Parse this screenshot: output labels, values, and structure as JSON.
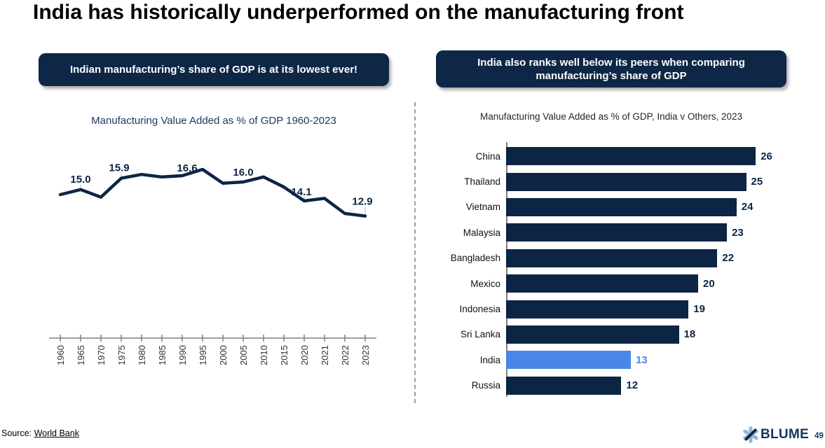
{
  "slide": {
    "title": "India has historically underperformed on the manufacturing front",
    "source_prefix": "Source:",
    "source_link": "World Bank",
    "brand": "BLUME",
    "page_number": "49"
  },
  "left_panel": {
    "banner": "Indian manufacturing’s share of GDP is at its lowest ever!"
  },
  "right_panel": {
    "banner": "India also ranks well below its peers when comparing manufacturing’s share of GDP"
  },
  "colors": {
    "navy": "#0c2544",
    "banner_navy": "#0e2747",
    "india_blue": "#4a86e8",
    "axis_gray": "#808080",
    "tick_label": "#333333",
    "leader_gray": "#a6b0bf",
    "title_navy": "#1f3864",
    "logo_light_blue": "#8fb8d8"
  },
  "chart_data": [
    {
      "type": "line",
      "title": "Manufacturing Value Added as % of GDP 1960-2023",
      "x": [
        "1960",
        "1965",
        "1970",
        "1975",
        "1980",
        "1985",
        "1990",
        "1995",
        "2000",
        "2005",
        "2010",
        "2015",
        "2020",
        "2021",
        "2022",
        "2023"
      ],
      "values": [
        14.6,
        15.0,
        14.4,
        15.9,
        16.2,
        16.0,
        16.1,
        16.6,
        15.5,
        15.6,
        16.0,
        15.2,
        14.1,
        14.3,
        13.1,
        12.9
      ],
      "data_labels": [
        {
          "x": "1965",
          "text": "15.0"
        },
        {
          "x": "1975",
          "text": "15.9"
        },
        {
          "x": "1995",
          "text": "16.6"
        },
        {
          "x": "2010",
          "text": "16.0"
        },
        {
          "x": "2020",
          "text": "14.1"
        },
        {
          "x": "2023",
          "text": "12.9"
        }
      ],
      "ylim": [
        12.5,
        17.0
      ],
      "grid": false,
      "y_axis_visible": false,
      "x_tick_rotation": -90
    },
    {
      "type": "bar",
      "orientation": "horizontal",
      "title": "Manufacturing Value Added as % of GDP, India v Others, 2023",
      "categories": [
        "China",
        "Thailand",
        "Vietnam",
        "Malaysia",
        "Bangladesh",
        "Mexico",
        "Indonesia",
        "Sri Lanka",
        "India",
        "Russia"
      ],
      "values": [
        26,
        25,
        24,
        23,
        22,
        20,
        19,
        18,
        13,
        12
      ],
      "highlight_category": "India",
      "xlim": [
        0,
        27
      ],
      "grid": false,
      "value_labels": true
    }
  ]
}
